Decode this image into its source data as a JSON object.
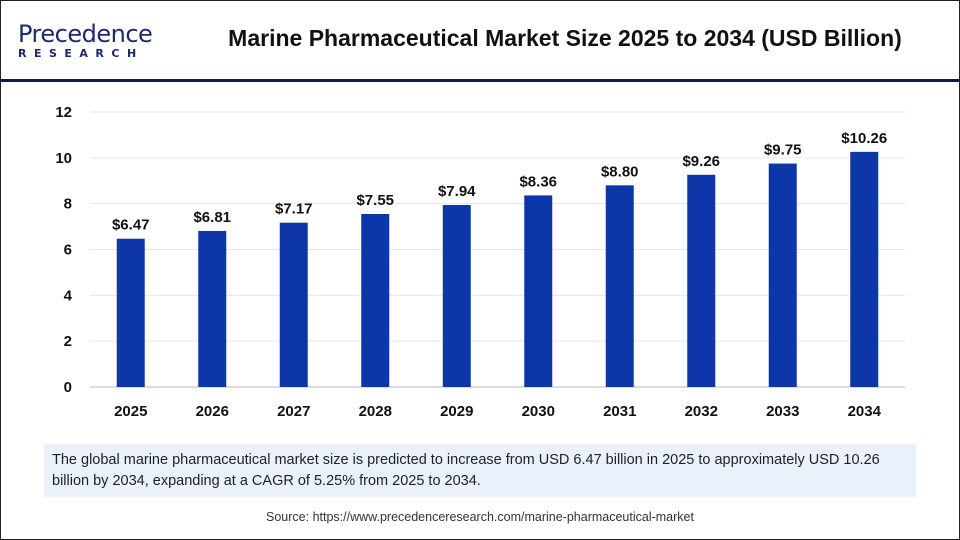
{
  "logo": {
    "line1": "Precedence",
    "line2": "RESEARCH"
  },
  "header": {
    "title": "Marine Pharmaceutical Market Size 2025 to 2034 (USD Billion)"
  },
  "chart_data": {
    "type": "bar",
    "title": "Marine Pharmaceutical Market Size 2025 to 2034 (USD Billion)",
    "categories": [
      "2025",
      "2026",
      "2027",
      "2028",
      "2029",
      "2030",
      "2031",
      "2032",
      "2033",
      "2034"
    ],
    "values": [
      6.47,
      6.81,
      7.17,
      7.55,
      7.94,
      8.36,
      8.8,
      9.26,
      9.75,
      10.26
    ],
    "data_labels": [
      "$6.47",
      "$6.81",
      "$7.17",
      "$7.55",
      "$7.94",
      "$8.36",
      "$8.80",
      "$9.26",
      "$9.75",
      "$10.26"
    ],
    "ylim": [
      0,
      12
    ],
    "yticks": [
      "0",
      "2",
      "4",
      "6",
      "8",
      "10",
      "12"
    ],
    "xlabel": "",
    "ylabel": "",
    "grid": true,
    "bar_color": "#0d36a8"
  },
  "summary": "The global marine pharmaceutical market size is predicted to increase from USD 6.47 billion in 2025 to approximately USD 10.26 billion by 2034, expanding at a CAGR of 5.25% from 2025 to 2034.",
  "source": "Source: https://www.precedenceresearch.com/marine-pharmaceutical-market"
}
